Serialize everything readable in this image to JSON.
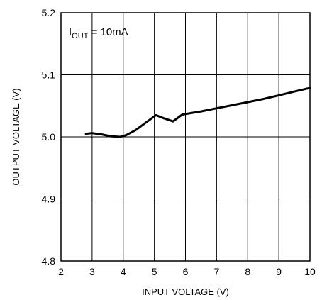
{
  "chart_data": {
    "type": "line",
    "title": "",
    "xlabel": "INPUT VOLTAGE (V)",
    "ylabel": "OUTPUT VOLTAGE (V)",
    "xlim": [
      2,
      10
    ],
    "ylim": [
      4.8,
      5.2
    ],
    "x_ticks": [
      2,
      3,
      4,
      5,
      6,
      7,
      8,
      9,
      10
    ],
    "x_tick_labels": [
      "2",
      "3",
      "4",
      "5",
      "6",
      "7",
      "8",
      "9",
      "10"
    ],
    "y_ticks": [
      4.8,
      4.9,
      5.0,
      5.1,
      5.2
    ],
    "y_tick_labels": [
      "4.8",
      "4.9",
      "5.0",
      "5.1",
      "5.2"
    ],
    "grid": true,
    "annotation": {
      "main": "I",
      "subscript": "OUT",
      "rest": " = 10mA"
    },
    "series": [
      {
        "color": "#000000",
        "x": [
          2.8,
          3.0,
          3.3,
          3.6,
          3.9,
          4.1,
          4.4,
          4.7,
          5.05,
          5.3,
          5.6,
          5.9,
          6.5,
          7.0,
          7.5,
          8.0,
          8.5,
          9.0,
          9.5,
          10.0
        ],
        "y": [
          5.005,
          5.006,
          5.004,
          5.001,
          5.0,
          5.003,
          5.011,
          5.022,
          5.035,
          5.03,
          5.025,
          5.036,
          5.041,
          5.046,
          5.051,
          5.056,
          5.061,
          5.067,
          5.073,
          5.079
        ]
      }
    ]
  }
}
